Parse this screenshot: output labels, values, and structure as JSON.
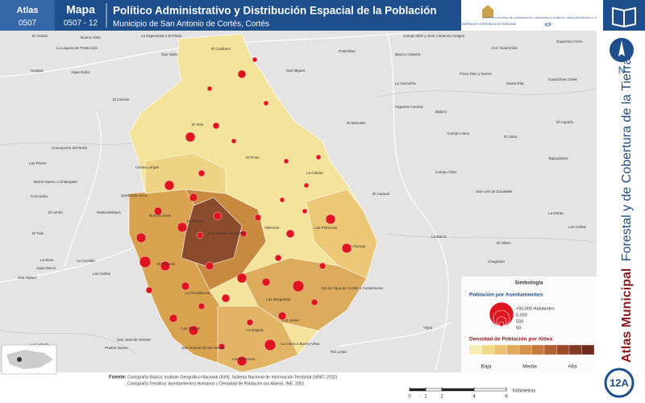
{
  "header": {
    "atlas_label": "Atlas",
    "atlas_code": "0507",
    "map_label": "Mapa",
    "map_code": "0507 - 12",
    "title": "Político Administrativo y Distribución Espacial de la Población",
    "subtitle": "Municipio de San Antonio de Cortés, Cortés"
  },
  "logos": {
    "left": "GOBIERNO DE LA REPÚBLICA DE HONDURAS",
    "right": "INSTITUTO NACIONAL DE CONSERVACIÓN Y DESARROLLO FORESTAL, ÁREAS PROTEGIDAS Y VIDA SILVESTRE",
    "right_short": "ICF"
  },
  "side": {
    "north": "N",
    "series_bold": "Atlas Municipal",
    "series_rest": "Forestal y de Cobertura de la Tierra",
    "page": "12A"
  },
  "places": [
    "El Volcán",
    "Buena Vista",
    "La Esperanza o El Pinito",
    "El Cuábano",
    "Potrerillos",
    "Campo Diez y Seis o Buenos Amigos",
    "Guanchía Corre",
    "La Laguna de Protección",
    "San Isidro",
    "Blanco Caserío",
    "Col. Guanchías",
    "Suyapa",
    "Agua Dulce",
    "San Miguel",
    "La Garrucha",
    "Finca Diez y Nueve",
    "Santa Rita",
    "Guanchías Creek",
    "El Corrión",
    "Higuerito Central",
    "Bejuco",
    "El Marcelal",
    "El Capulín",
    "El Sitio",
    "Campo Llano",
    "El Llano",
    "Concepción del Norte",
    "Las Flores",
    "El Pinito",
    "La Ceibita",
    "Campo Olivo",
    "Tapiquilares",
    "Lomas Largas",
    "Barrio Nuevo o Chiquipate",
    "Quebrada Seca",
    "El Caracol",
    "San Luis de Zacatales",
    "Concordia",
    "El Limón",
    "Santa Bárbara",
    "Buenos Aires",
    "El Paraíso",
    "San Antonio de Cortés",
    "Valleción",
    "Las Palmeras",
    "La Danta",
    "Las Cañas",
    "El Tule",
    "La Barca",
    "El Oliver",
    "La Brea",
    "El Encanto",
    "Pacaya",
    "Chagüitón",
    "La Cuchilla",
    "Agua Zarca",
    "San Rafael",
    "Las Cañas",
    "Ojo de Agua de Cortés o Cantarranas",
    "Las Margaritas",
    "La Providencia",
    "Los Jeses",
    "Las Cruces",
    "La Majada",
    "San José de Oriente",
    "San Vicente de las Nieves",
    "Los Palmares",
    "La Ceiba o Buena Vista",
    "Río Lindo",
    "La Cañada",
    "Pueblo Nuevo",
    "Yojoa"
  ],
  "legend": {
    "title": "Simbología",
    "population_title": "Población por Asentamientos",
    "population_classes": [
      "+50,000 Habitantes",
      "5,000",
      "500",
      "50"
    ],
    "density_title": "Densidad de Población por Aldea",
    "density_labels": [
      "Baja",
      "Media",
      "Alta"
    ]
  },
  "source": {
    "label": "Fuente:",
    "lines": [
      "Cartografía Básica: Instituto Geográfico Nacional (IGN), Sistema Nacional de Información Territorial (SINIT, 2012)",
      "Cartografía Temática: Asentamientos Humanos y Densidad de Población por Aldeas, INE, 2001"
    ]
  },
  "scale": {
    "ticks": [
      0,
      1,
      2,
      4,
      6
    ],
    "unit": "Kilómetros"
  }
}
